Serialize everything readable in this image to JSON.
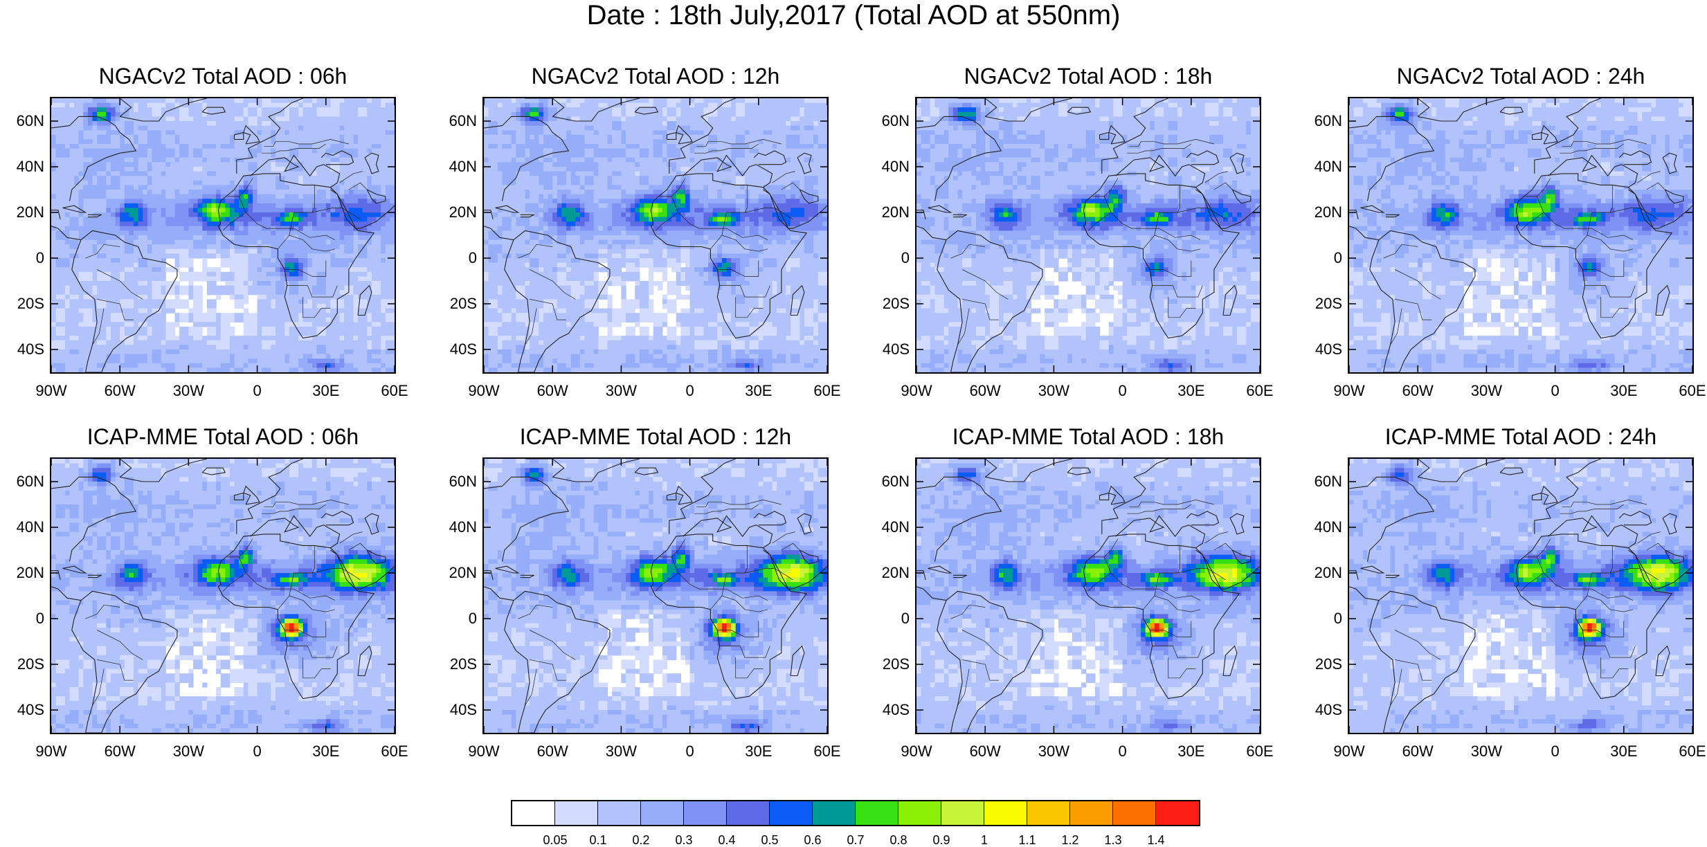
{
  "title": "Date : 18th July,2017 (Total AOD at 550nm)",
  "panels": [
    {
      "title": "NGACv2 Total AOD : 06h",
      "model": "NGACv2",
      "hour": "06h"
    },
    {
      "title": "NGACv2 Total AOD : 12h",
      "model": "NGACv2",
      "hour": "12h"
    },
    {
      "title": "NGACv2 Total AOD : 18h",
      "model": "NGACv2",
      "hour": "18h"
    },
    {
      "title": "NGACv2 Total AOD : 24h",
      "model": "NGACv2",
      "hour": "24h"
    },
    {
      "title": "ICAP-MME Total AOD : 06h",
      "model": "ICAP-MME",
      "hour": "06h"
    },
    {
      "title": "ICAP-MME Total AOD : 12h",
      "model": "ICAP-MME",
      "hour": "12h"
    },
    {
      "title": "ICAP-MME Total AOD : 18h",
      "model": "ICAP-MME",
      "hour": "18h"
    },
    {
      "title": "ICAP-MME Total AOD : 24h",
      "model": "ICAP-MME",
      "hour": "24h"
    }
  ],
  "map": {
    "lon_range": [
      -90,
      60
    ],
    "lat_range": [
      -50,
      70
    ],
    "lat_ticks": [
      {
        "value": 60,
        "label": "60N"
      },
      {
        "value": 40,
        "label": "40N"
      },
      {
        "value": 20,
        "label": "20N"
      },
      {
        "value": 0,
        "label": "0"
      },
      {
        "value": -20,
        "label": "20S"
      },
      {
        "value": -40,
        "label": "40S"
      }
    ],
    "lon_ticks": [
      {
        "value": -90,
        "label": "90W"
      },
      {
        "value": -60,
        "label": "60W"
      },
      {
        "value": -30,
        "label": "30W"
      },
      {
        "value": 0,
        "label": "0"
      },
      {
        "value": 30,
        "label": "30E"
      },
      {
        "value": 60,
        "label": "60E"
      }
    ]
  },
  "colorbar": {
    "colors": [
      "#ffffff",
      "#d3dcff",
      "#b2c2fb",
      "#96aefa",
      "#7f93f4",
      "#5f6be6",
      "#0a5cf5",
      "#009a96",
      "#36e012",
      "#8af007",
      "#c8f53c",
      "#fafa00",
      "#fbc800",
      "#fb9c00",
      "#fb7000",
      "#fa1e14"
    ],
    "labels": [
      "0.05",
      "0.1",
      "0.2",
      "0.3",
      "0.4",
      "0.5",
      "0.6",
      "0.7",
      "0.8",
      "0.9",
      "1",
      "1.1",
      "1.2",
      "1.3",
      "1.4"
    ]
  }
}
